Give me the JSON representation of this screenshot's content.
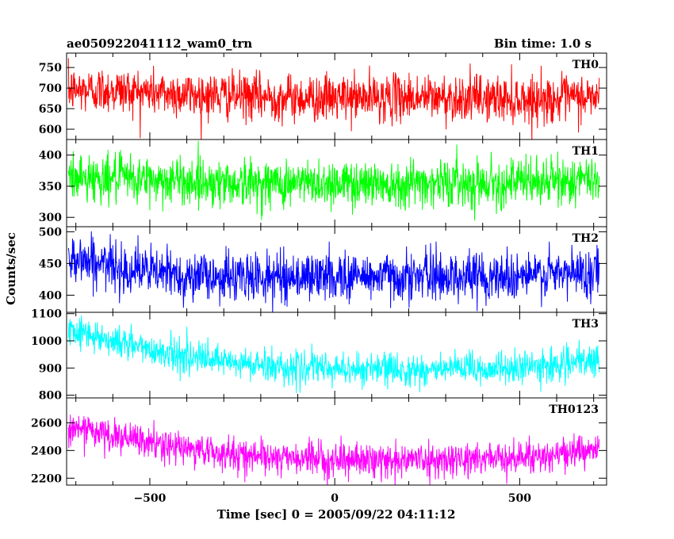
{
  "header": {
    "title": "ae050922041112_wam0_trn",
    "bin_time": "Bin time: 1.0 s"
  },
  "chart_data": {
    "type": "line",
    "xlabel": "Time [sec] 0 = 2005/09/22 04:11:12",
    "ylabel": "Counts/sec",
    "xlim": [
      -725,
      735
    ],
    "x_ticks": [
      -500,
      0,
      500
    ],
    "x_tick_labels": [
      "−500",
      "0",
      "500"
    ],
    "x_step": 1.0,
    "x_range": [
      -720,
      715
    ],
    "grid": false,
    "panels": [
      {
        "name": "TH0",
        "color": "#ff0000",
        "ylim": [
          575,
          785
        ],
        "y_ticks": [
          600,
          650,
          700,
          750
        ],
        "y_tick_labels": [
          "600",
          "650",
          "700",
          "750"
        ],
        "trend": [
          [
            -720,
            695
          ],
          [
            -600,
            695
          ],
          [
            -400,
            685
          ],
          [
            -200,
            678
          ],
          [
            0,
            675
          ],
          [
            200,
            678
          ],
          [
            400,
            675
          ],
          [
            600,
            672
          ],
          [
            715,
            680
          ]
        ],
        "noise_sd": 28
      },
      {
        "name": "TH1",
        "color": "#00ff00",
        "ylim": [
          285,
          425
        ],
        "y_ticks": [
          300,
          350,
          400
        ],
        "y_tick_labels": [
          "300",
          "350",
          "400"
        ],
        "trend": [
          [
            -720,
            365
          ],
          [
            -500,
            360
          ],
          [
            -250,
            355
          ],
          [
            0,
            355
          ],
          [
            250,
            356
          ],
          [
            500,
            356
          ],
          [
            715,
            360
          ]
        ],
        "noise_sd": 19
      },
      {
        "name": "TH2",
        "color": "#0000ff",
        "ylim": [
          373,
          508
        ],
        "y_ticks": [
          400,
          450,
          500
        ],
        "y_tick_labels": [
          "400",
          "450",
          "500"
        ],
        "trend": [
          [
            -720,
            462
          ],
          [
            -600,
            445
          ],
          [
            -400,
            430
          ],
          [
            -200,
            428
          ],
          [
            0,
            430
          ],
          [
            200,
            430
          ],
          [
            400,
            430
          ],
          [
            600,
            432
          ],
          [
            715,
            438
          ]
        ],
        "noise_sd": 19
      },
      {
        "name": "TH3",
        "color": "#00ffff",
        "ylim": [
          790,
          1105
        ],
        "y_ticks": [
          800,
          900,
          1000,
          1100
        ],
        "y_tick_labels": [
          "800",
          "900",
          "1000",
          "1100"
        ],
        "trend": [
          [
            -720,
            1050
          ],
          [
            -600,
            1000
          ],
          [
            -450,
            955
          ],
          [
            -300,
            920
          ],
          [
            -100,
            900
          ],
          [
            100,
            895
          ],
          [
            300,
            893
          ],
          [
            500,
            900
          ],
          [
            715,
            925
          ]
        ],
        "noise_sd": 30
      },
      {
        "name": "TH0123",
        "color": "#ff00ff",
        "ylim": [
          2150,
          2780
        ],
        "y_ticks": [
          2200,
          2400,
          2600
        ],
        "y_tick_labels": [
          "2200",
          "2400",
          "2600"
        ],
        "trend": [
          [
            -720,
            2580
          ],
          [
            -600,
            2500
          ],
          [
            -450,
            2430
          ],
          [
            -300,
            2380
          ],
          [
            -100,
            2340
          ],
          [
            100,
            2330
          ],
          [
            300,
            2335
          ],
          [
            500,
            2350
          ],
          [
            715,
            2400
          ]
        ],
        "noise_sd": 58
      }
    ]
  }
}
